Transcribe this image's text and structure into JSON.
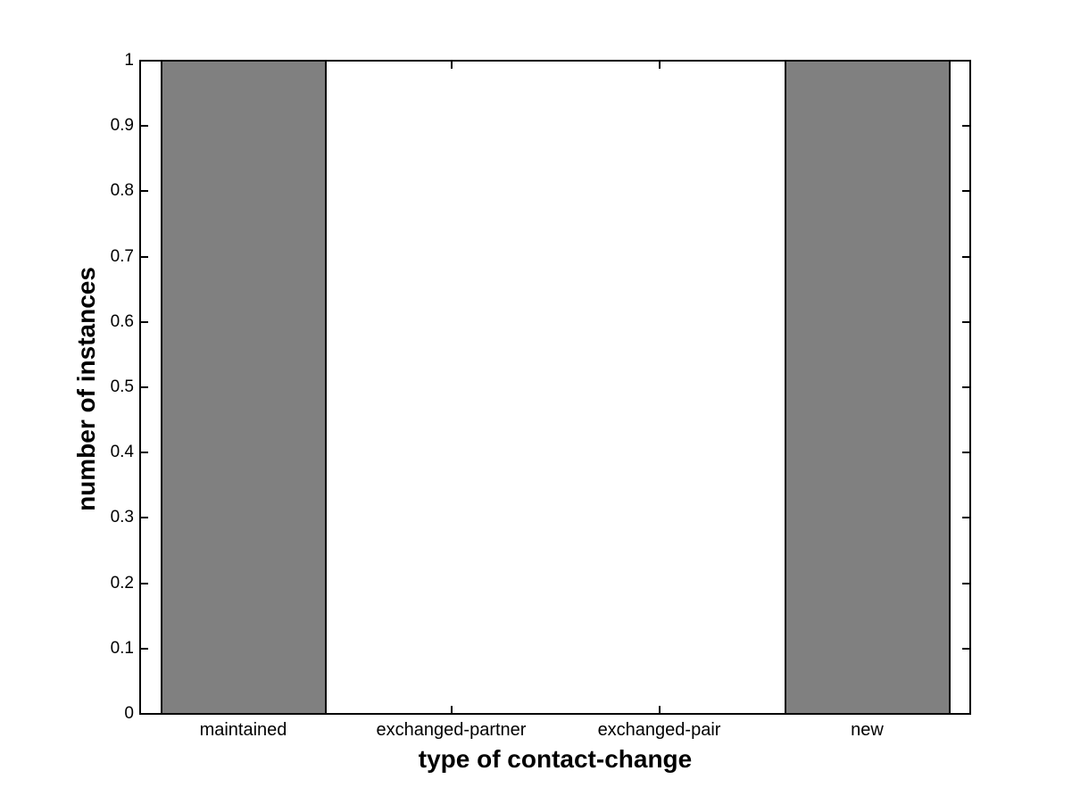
{
  "figure": {
    "background": "#ffffff"
  },
  "chart_data": {
    "type": "bar",
    "title": "",
    "xlabel": "type of contact-change",
    "ylabel": "number of instances",
    "categories": [
      "maintained",
      "exchanged-partner",
      "exchanged-pair",
      "new"
    ],
    "values": [
      1,
      0,
      0,
      1
    ],
    "ylim": [
      0,
      1
    ],
    "xlim_categories": [
      0.5,
      4.5
    ],
    "yticks": [
      0,
      0.1,
      0.2,
      0.3,
      0.4,
      0.5,
      0.6,
      0.7,
      0.8,
      0.9,
      1
    ],
    "ytick_labels": [
      "0",
      "0.1",
      "0.2",
      "0.3",
      "0.4",
      "0.5",
      "0.6",
      "0.7",
      "0.8",
      "0.9",
      "1"
    ],
    "bar_width_fraction": 0.8,
    "grid": false,
    "legend": null,
    "tick_direction": "in",
    "colors": {
      "bar_fill": "#808080",
      "bar_edge": "#000000",
      "axis": "#000000",
      "background": "#ffffff",
      "text": "#000000"
    }
  }
}
